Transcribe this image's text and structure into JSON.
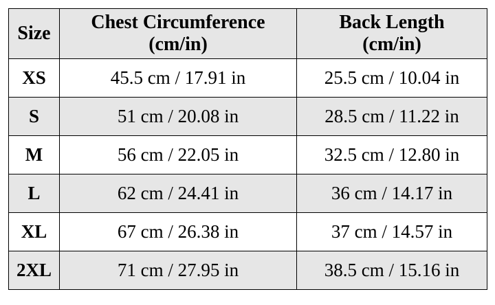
{
  "table": {
    "header": [
      "Size",
      "Chest Circumference\n(cm/in)",
      "Back Length\n(cm/in)"
    ],
    "rows": [
      [
        "XS",
        "45.5 cm / 17.91 in",
        "25.5 cm / 10.04 in"
      ],
      [
        "S",
        "51 cm / 20.08 in",
        "28.5 cm / 11.22 in"
      ],
      [
        "M",
        "56 cm / 22.05 in",
        "32.5 cm / 12.80 in"
      ],
      [
        "L",
        "62 cm / 24.41 in",
        "36 cm / 14.17 in"
      ],
      [
        "XL",
        "67 cm / 26.38 in",
        "37 cm / 14.57 in"
      ],
      [
        "2XL",
        "71 cm / 27.95 in",
        "38.5 cm / 15.16 in"
      ]
    ]
  }
}
